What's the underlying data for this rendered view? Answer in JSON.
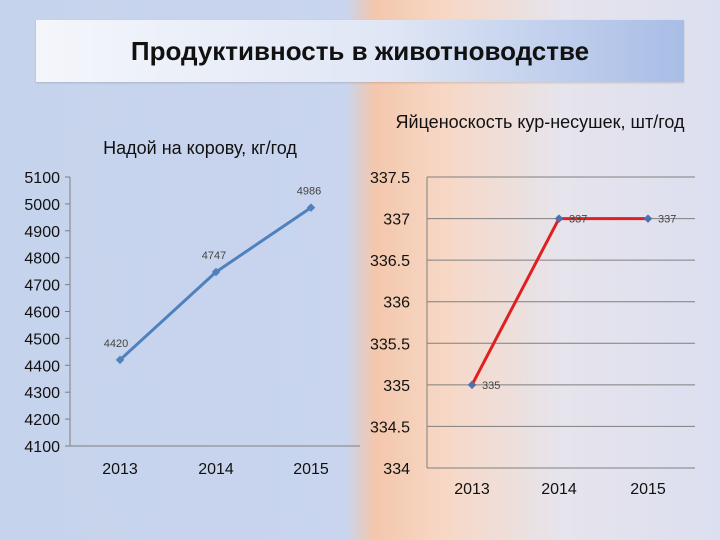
{
  "slide": {
    "title": "Продуктивность в животноводстве"
  },
  "chart_data": [
    {
      "type": "line",
      "title": "Надой на корову, кг/год",
      "categories": [
        "2013",
        "2014",
        "2015"
      ],
      "series": [
        {
          "values": [
            4420,
            4747,
            4986
          ],
          "color": "#4f81bd"
        }
      ],
      "data_labels": [
        "4420",
        "4747",
        "4986"
      ],
      "ylim": [
        4100,
        5100
      ],
      "yticks": [
        "4100",
        "4200",
        "4300",
        "4400",
        "4500",
        "4600",
        "4700",
        "4800",
        "4900",
        "5000",
        "5100"
      ],
      "grid": false
    },
    {
      "type": "line",
      "title": "Яйценоскость кур-несушек, шт/год",
      "categories": [
        "2013",
        "2014",
        "2015"
      ],
      "series": [
        {
          "values": [
            335,
            337,
            337
          ],
          "color": "#e02020"
        }
      ],
      "data_labels": [
        "335",
        "337",
        "337"
      ],
      "ylim": [
        334,
        337.5
      ],
      "yticks": [
        "334",
        "334.5",
        "335",
        "335.5",
        "336",
        "336.5",
        "337",
        "337.5"
      ],
      "grid": true
    }
  ]
}
